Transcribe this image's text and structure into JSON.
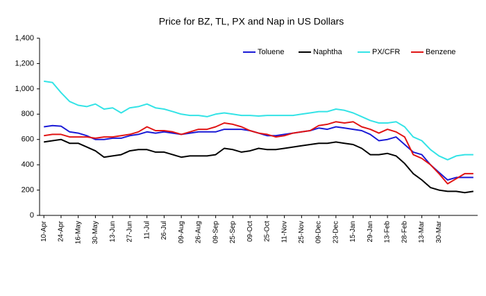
{
  "chart_data": {
    "type": "line",
    "title": "Price for BZ, TL, PX and Nap in US Dollars",
    "categories": [
      "10-Apr",
      null,
      "24-Apr",
      null,
      "16-May",
      null,
      "30-May",
      null,
      "13-Jun",
      null,
      "27-Jun",
      null,
      "11-Jul",
      null,
      "26-Jul",
      null,
      "09-Aug",
      null,
      "26-Aug",
      null,
      "09-Sep",
      null,
      "25-Sep",
      null,
      "09-Oct",
      null,
      "25-Oct",
      null,
      "11-Nov",
      null,
      "25-Nov",
      null,
      "09-Dec",
      null,
      "23-Dec",
      null,
      "15-Jan",
      null,
      "29-Jan",
      null,
      "13-Feb",
      null,
      "28-Feb",
      null,
      "13-Mar",
      null,
      "30-Mar",
      null,
      null,
      null,
      null
    ],
    "series": [
      {
        "name": "Toluene",
        "color": "#1a1ad6",
        "values": [
          700,
          710,
          705,
          660,
          650,
          630,
          600,
          600,
          610,
          610,
          630,
          640,
          660,
          650,
          660,
          650,
          640,
          650,
          660,
          660,
          660,
          680,
          680,
          680,
          670,
          650,
          630,
          630,
          640,
          650,
          660,
          670,
          690,
          680,
          700,
          690,
          680,
          670,
          640,
          590,
          600,
          620,
          560,
          500,
          480,
          400,
          340,
          280,
          300,
          300,
          300
        ]
      },
      {
        "name": "Naphtha",
        "color": "#000000",
        "values": [
          580,
          590,
          600,
          570,
          570,
          540,
          510,
          460,
          470,
          480,
          510,
          520,
          520,
          500,
          500,
          480,
          460,
          470,
          470,
          470,
          480,
          530,
          520,
          500,
          510,
          530,
          520,
          520,
          530,
          540,
          550,
          560,
          570,
          570,
          580,
          570,
          560,
          530,
          480,
          480,
          490,
          470,
          410,
          330,
          280,
          220,
          200,
          190,
          190,
          180,
          190
        ]
      },
      {
        "name": "PX/CFR",
        "color": "#33e3e6",
        "values": [
          1060,
          1050,
          970,
          900,
          870,
          860,
          880,
          840,
          850,
          810,
          850,
          860,
          880,
          850,
          840,
          820,
          800,
          790,
          790,
          780,
          800,
          810,
          800,
          790,
          790,
          785,
          790,
          790,
          790,
          790,
          800,
          810,
          820,
          820,
          840,
          830,
          810,
          780,
          750,
          730,
          730,
          740,
          700,
          620,
          590,
          520,
          470,
          440,
          470,
          480,
          480
        ]
      },
      {
        "name": "Benzene",
        "color": "#e01414",
        "values": [
          630,
          640,
          640,
          620,
          620,
          620,
          610,
          620,
          620,
          630,
          640,
          660,
          700,
          670,
          670,
          660,
          640,
          660,
          680,
          680,
          700,
          730,
          720,
          700,
          670,
          650,
          640,
          620,
          630,
          650,
          660,
          670,
          710,
          720,
          740,
          730,
          740,
          700,
          680,
          650,
          680,
          660,
          620,
          480,
          450,
          400,
          330,
          250,
          290,
          330,
          330
        ]
      }
    ],
    "ylim": [
      0,
      1400
    ],
    "yticks": [
      0,
      200,
      400,
      600,
      800,
      {
        "value": 1000,
        "label": "1,000"
      },
      {
        "value": 1200,
        "label": "1,200"
      },
      {
        "value": 1400,
        "label": "1,400"
      }
    ],
    "grid": false,
    "legend": "top-right"
  }
}
